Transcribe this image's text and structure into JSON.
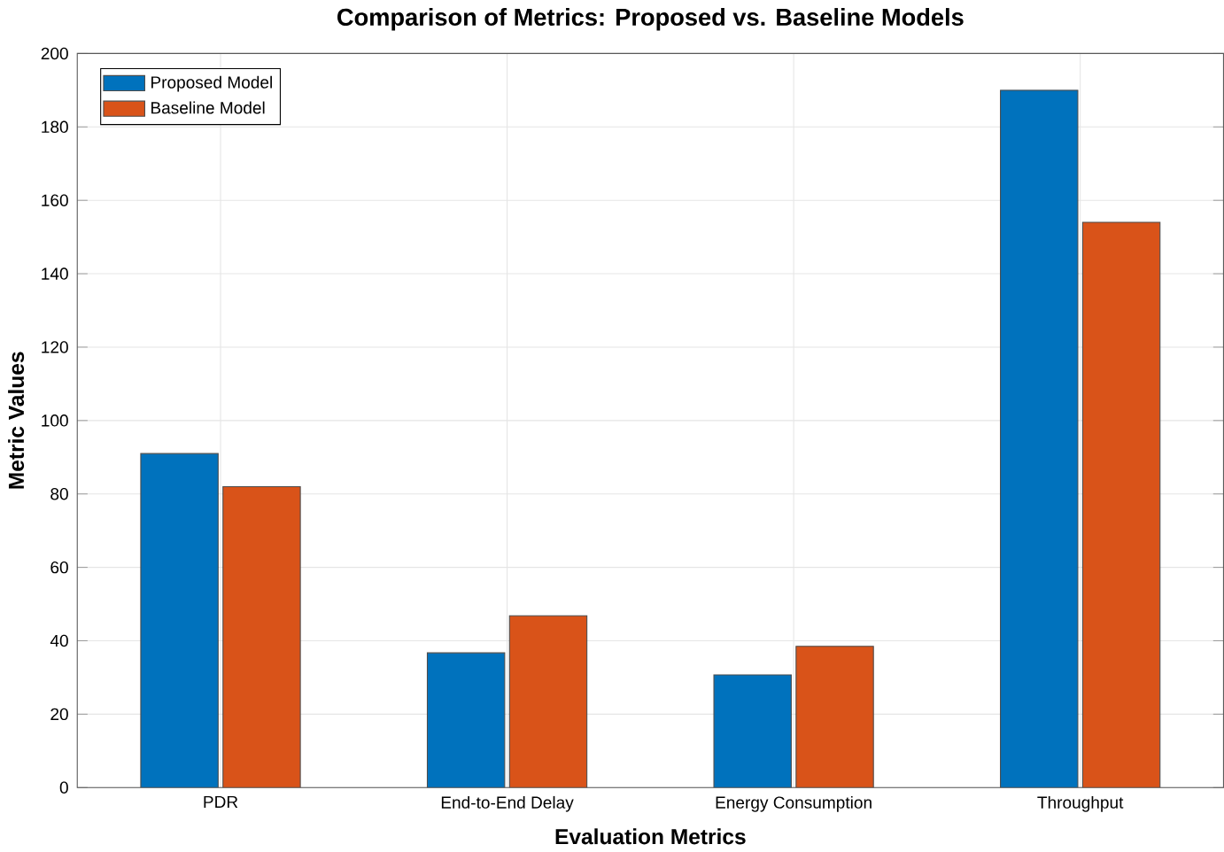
{
  "chart_data": {
    "type": "bar",
    "title": "Comparison of Metrics: Proposed vs. Baseline Models",
    "xlabel": "Evaluation Metrics",
    "ylabel": "Metric Values",
    "categories": [
      "PDR",
      "End-to-End Delay",
      "Energy Consumption",
      "Throughput"
    ],
    "series": [
      {
        "name": "Proposed Model",
        "color": "#0072bd",
        "values": [
          91,
          36.7,
          30.7,
          190
        ]
      },
      {
        "name": "Baseline Model",
        "color": "#d95319",
        "values": [
          82,
          46.8,
          38.5,
          154
        ]
      }
    ],
    "ylim": [
      0,
      200
    ],
    "yticks": [
      0,
      20,
      40,
      60,
      80,
      100,
      120,
      140,
      160,
      180,
      200
    ],
    "grid": true,
    "legend": "top left"
  }
}
